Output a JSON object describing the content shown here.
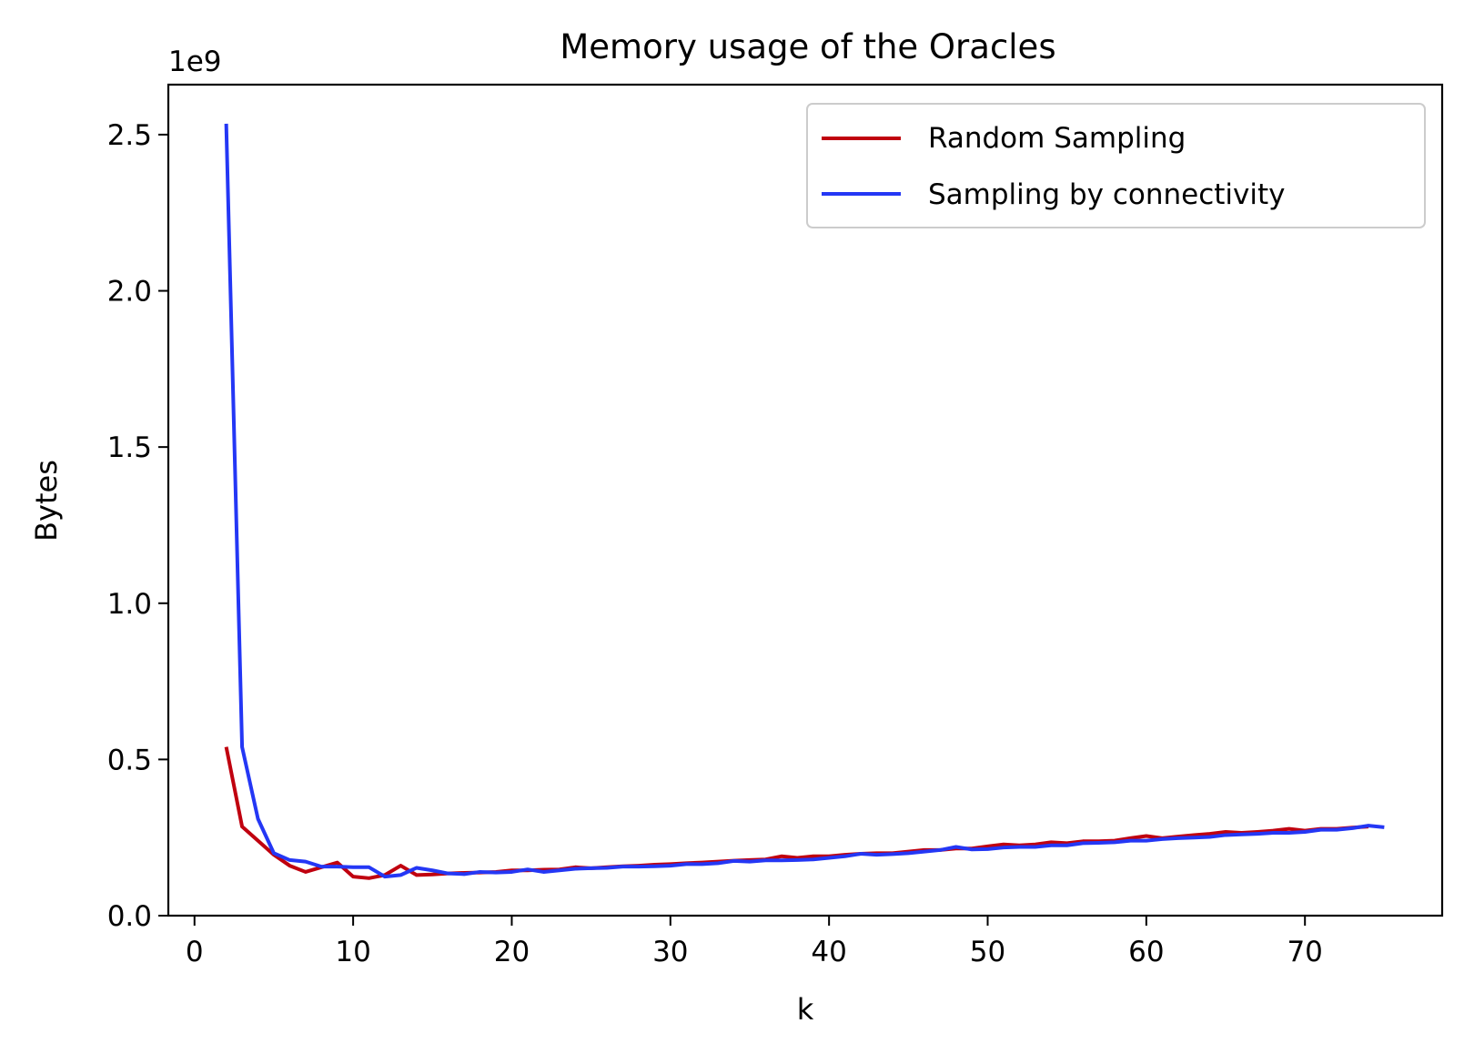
{
  "chart_data": {
    "type": "line",
    "title": "Memory usage of the Oracles",
    "xlabel": "k",
    "ylabel": "Bytes",
    "y_offset_label": "1e9",
    "xlim": [
      -1.65,
      78.65
    ],
    "ylim": [
      0,
      2.66
    ],
    "y_scale_note": "values in units of 1e9 bytes",
    "x_ticks": [
      0,
      10,
      20,
      30,
      40,
      50,
      60,
      70
    ],
    "x_tick_labels": [
      "0",
      "10",
      "20",
      "30",
      "40",
      "50",
      "60",
      "70"
    ],
    "y_ticks": [
      0.0,
      0.5,
      1.0,
      1.5,
      2.0,
      2.5
    ],
    "y_tick_labels": [
      "0.0",
      "0.5",
      "1.0",
      "1.5",
      "2.0",
      "2.5"
    ],
    "grid": false,
    "legend_position": "top-right",
    "series": [
      {
        "name": "Random Sampling",
        "color": "#c0000f",
        "x": [
          2,
          3,
          4,
          5,
          6,
          7,
          8,
          9,
          10,
          11,
          12,
          13,
          14,
          15,
          16,
          17,
          18,
          19,
          20,
          21,
          22,
          23,
          24,
          25,
          26,
          27,
          28,
          29,
          30,
          31,
          32,
          33,
          34,
          35,
          36,
          37,
          38,
          39,
          40,
          41,
          42,
          43,
          44,
          45,
          46,
          47,
          48,
          49,
          50,
          51,
          52,
          53,
          54,
          55,
          56,
          57,
          58,
          59,
          60,
          61,
          62,
          63,
          64,
          65,
          66,
          67,
          68,
          69,
          70,
          71,
          72,
          73,
          74
        ],
        "y": [
          0.54,
          0.285,
          0.24,
          0.195,
          0.16,
          0.14,
          0.155,
          0.17,
          0.125,
          0.12,
          0.13,
          0.16,
          0.13,
          0.132,
          0.135,
          0.137,
          0.138,
          0.14,
          0.145,
          0.145,
          0.147,
          0.148,
          0.155,
          0.152,
          0.155,
          0.158,
          0.16,
          0.163,
          0.165,
          0.168,
          0.17,
          0.173,
          0.176,
          0.178,
          0.18,
          0.19,
          0.185,
          0.19,
          0.19,
          0.195,
          0.198,
          0.2,
          0.2,
          0.205,
          0.21,
          0.21,
          0.215,
          0.215,
          0.222,
          0.228,
          0.225,
          0.228,
          0.235,
          0.232,
          0.238,
          0.238,
          0.24,
          0.248,
          0.255,
          0.248,
          0.253,
          0.258,
          0.262,
          0.268,
          0.265,
          0.268,
          0.272,
          0.278,
          0.272,
          0.278,
          0.278,
          0.282,
          0.285
        ]
      },
      {
        "name": "Sampling by connectivity",
        "color": "#2437f5",
        "x": [
          2,
          3,
          4,
          5,
          6,
          7,
          8,
          9,
          10,
          11,
          12,
          13,
          14,
          15,
          16,
          17,
          18,
          19,
          20,
          21,
          22,
          23,
          24,
          25,
          26,
          27,
          28,
          29,
          30,
          31,
          32,
          33,
          34,
          35,
          36,
          37,
          38,
          39,
          40,
          41,
          42,
          43,
          44,
          45,
          46,
          47,
          48,
          49,
          50,
          51,
          52,
          53,
          54,
          55,
          56,
          57,
          58,
          59,
          60,
          61,
          62,
          63,
          64,
          65,
          66,
          67,
          68,
          69,
          70,
          71,
          72,
          73,
          74,
          75
        ],
        "y": [
          2.535,
          0.54,
          0.31,
          0.2,
          0.178,
          0.173,
          0.157,
          0.157,
          0.155,
          0.155,
          0.125,
          0.13,
          0.153,
          0.145,
          0.135,
          0.133,
          0.14,
          0.138,
          0.14,
          0.148,
          0.14,
          0.145,
          0.15,
          0.152,
          0.153,
          0.157,
          0.157,
          0.158,
          0.16,
          0.165,
          0.165,
          0.168,
          0.175,
          0.173,
          0.177,
          0.177,
          0.178,
          0.18,
          0.185,
          0.19,
          0.198,
          0.195,
          0.197,
          0.2,
          0.205,
          0.21,
          0.22,
          0.212,
          0.213,
          0.218,
          0.22,
          0.22,
          0.225,
          0.225,
          0.232,
          0.233,
          0.235,
          0.24,
          0.24,
          0.245,
          0.248,
          0.25,
          0.252,
          0.258,
          0.26,
          0.262,
          0.265,
          0.265,
          0.268,
          0.275,
          0.275,
          0.28,
          0.288,
          0.283
        ]
      }
    ]
  }
}
